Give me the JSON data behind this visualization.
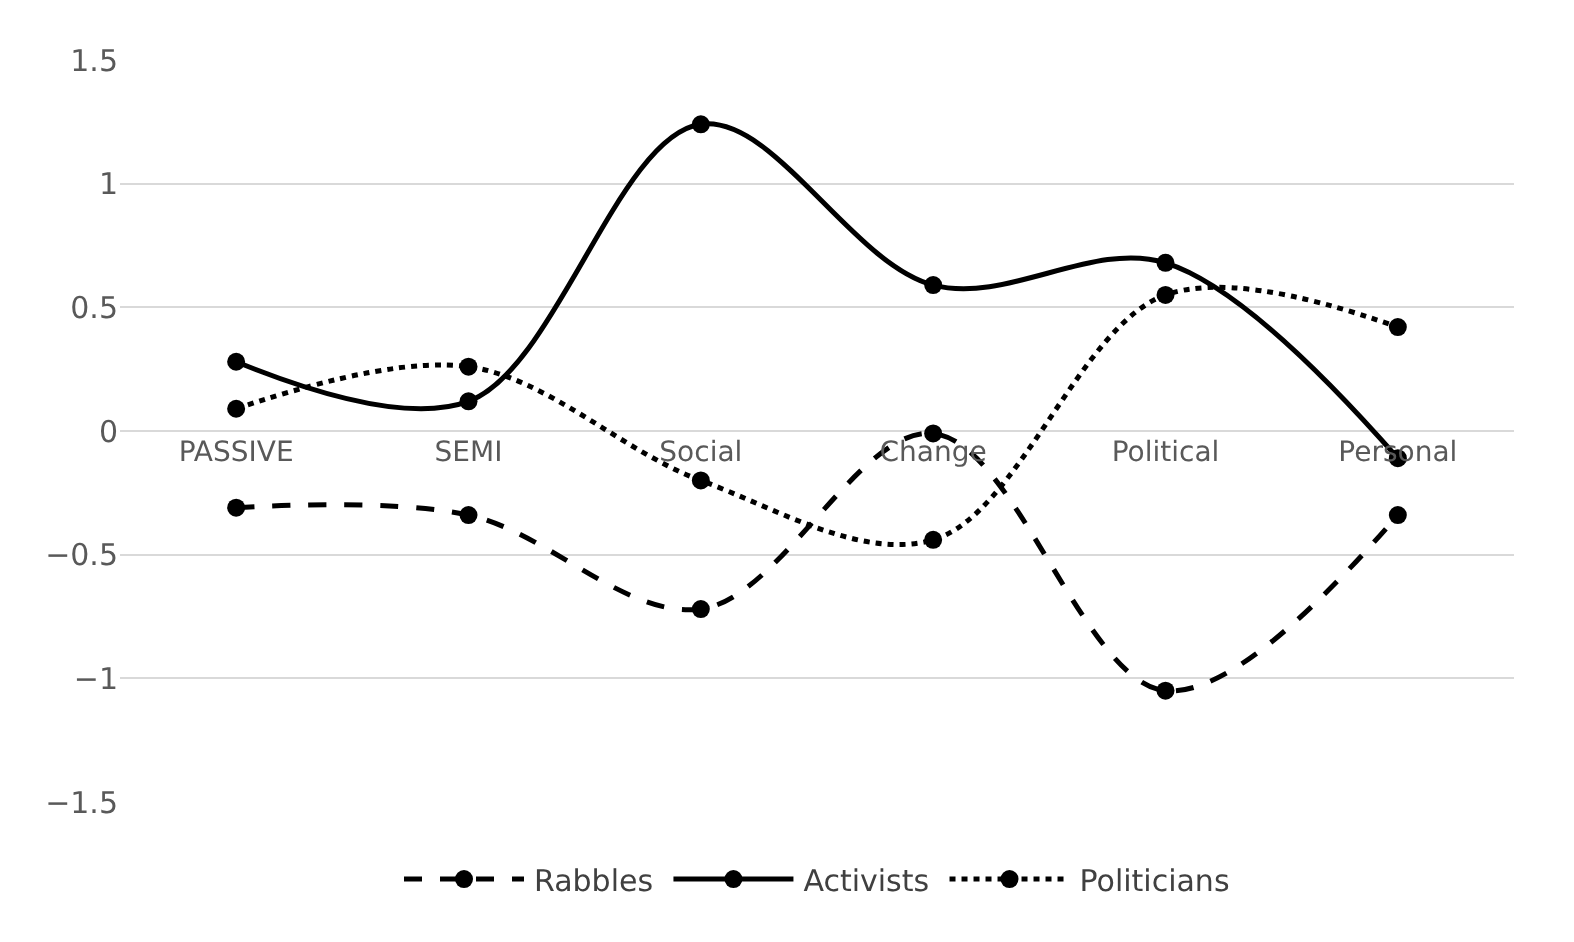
{
  "chart_data": {
    "type": "line",
    "categories": [
      "PASSIVE",
      "SEMI",
      "Social",
      "Change",
      "Political",
      "Personal"
    ],
    "series": [
      {
        "name": "Rabbles",
        "color": "#000000",
        "line_style": "dashed",
        "values": [
          -0.31,
          -0.34,
          -0.72,
          -0.01,
          -1.05,
          -0.34
        ]
      },
      {
        "name": "Activists",
        "color": "#000000",
        "line_style": "solid",
        "values": [
          0.28,
          0.12,
          1.24,
          0.59,
          0.68,
          -0.11
        ]
      },
      {
        "name": "Politicians",
        "color": "#000000",
        "line_style": "dotted",
        "values": [
          0.09,
          0.26,
          -0.2,
          -0.44,
          0.55,
          0.42
        ]
      }
    ],
    "ylim": [
      -1.5,
      1.5
    ],
    "yticks": [
      -1.5,
      -1,
      -0.5,
      0,
      0.5,
      1,
      1.5
    ],
    "grid": "y",
    "legend": "bottom",
    "marker": "circle"
  }
}
